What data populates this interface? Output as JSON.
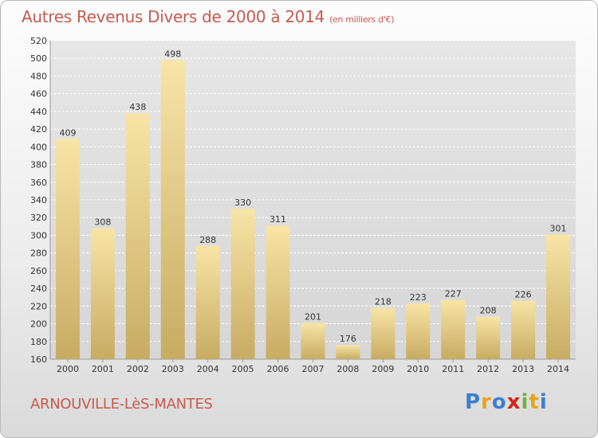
{
  "header": {
    "title": "Autres Revenus Divers de 2000 à 2014",
    "subtitle": "(en milliers d'€)"
  },
  "footer": {
    "commune": "ARNOUVILLE-LèS-MANTES",
    "logo_letters": [
      "P",
      "r",
      "o",
      "x",
      "i",
      "t",
      "i"
    ],
    "logo_colors": [
      "#3b7fd0",
      "#e8a21c",
      "#3b7fd0",
      "#d4241b",
      "#6cb33e",
      "#e8a21c",
      "#3b7fd0"
    ]
  },
  "colors": {
    "title": "#c85a4f",
    "bar_top": "#f8e4a6",
    "bar_bottom": "#c7ab62",
    "grid": "#ffffff"
  },
  "chart_data": {
    "type": "bar",
    "categories": [
      "2000",
      "2001",
      "2002",
      "2003",
      "2004",
      "2005",
      "2006",
      "2007",
      "2008",
      "2009",
      "2010",
      "2011",
      "2012",
      "2013",
      "2014"
    ],
    "values": [
      409,
      308,
      438,
      498,
      288,
      330,
      311,
      201,
      176,
      218,
      223,
      227,
      208,
      226,
      301
    ],
    "ylim": [
      160,
      520
    ],
    "yticks": [
      160,
      180,
      200,
      220,
      240,
      260,
      280,
      300,
      320,
      340,
      360,
      380,
      400,
      420,
      440,
      460,
      480,
      500,
      520
    ],
    "grid": true,
    "data_labels": true
  }
}
